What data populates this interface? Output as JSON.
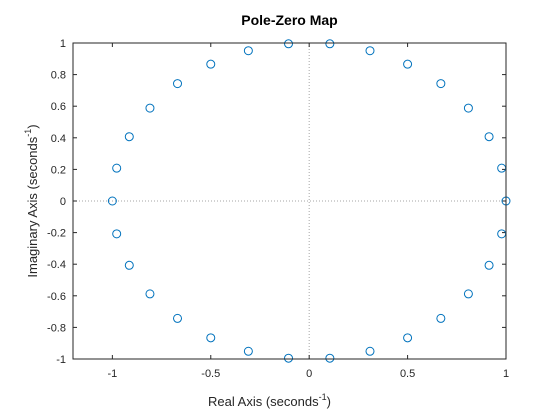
{
  "chart_data": {
    "type": "scatter",
    "title": "Pole-Zero Map",
    "xlabel": {
      "text": "Real Axis (seconds",
      "superscript": "-1",
      "suffix": ")"
    },
    "ylabel": {
      "text": "Imaginary Axis (seconds",
      "superscript": "-1",
      "suffix": ")"
    },
    "xlim": [
      -1.2,
      1
    ],
    "ylim": [
      -1,
      1
    ],
    "x_ticks": [
      -1,
      -0.5,
      0,
      0.5,
      1
    ],
    "x_tick_labels": [
      "-1",
      "-0.5",
      "0",
      "0.5",
      "1"
    ],
    "y_ticks": [
      -1,
      -0.8,
      -0.6,
      -0.4,
      -0.2,
      0,
      0.2,
      0.4,
      0.6,
      0.8,
      1
    ],
    "y_tick_labels": [
      "-1",
      "-0.8",
      "-0.6",
      "-0.4",
      "-0.2",
      "0",
      "0.2",
      "0.4",
      "0.6",
      "0.8",
      "1"
    ],
    "grid": false,
    "zero_lines": "dotted",
    "marker": "circle-open",
    "marker_color": "#0072BD",
    "series": [
      {
        "kind": "zeros",
        "points": [
          [
            1.0,
            0.0
          ],
          [
            0.978,
            0.208
          ],
          [
            0.914,
            0.407
          ],
          [
            0.809,
            0.588
          ],
          [
            0.669,
            0.743
          ],
          [
            0.5,
            0.866
          ],
          [
            0.309,
            0.951
          ],
          [
            0.105,
            0.995
          ],
          [
            -0.105,
            0.995
          ],
          [
            -0.309,
            0.951
          ],
          [
            -0.5,
            0.866
          ],
          [
            -0.669,
            0.743
          ],
          [
            -0.809,
            0.588
          ],
          [
            -0.914,
            0.407
          ],
          [
            -0.978,
            0.208
          ],
          [
            -1.0,
            0.0
          ],
          [
            -0.978,
            -0.208
          ],
          [
            -0.914,
            -0.407
          ],
          [
            -0.809,
            -0.588
          ],
          [
            -0.669,
            -0.743
          ],
          [
            -0.5,
            -0.866
          ],
          [
            -0.309,
            -0.951
          ],
          [
            -0.105,
            -0.995
          ],
          [
            0.105,
            -0.995
          ],
          [
            0.309,
            -0.951
          ],
          [
            0.5,
            -0.866
          ],
          [
            0.669,
            -0.743
          ],
          [
            0.809,
            -0.588
          ],
          [
            0.914,
            -0.407
          ],
          [
            0.978,
            -0.208
          ]
        ]
      }
    ]
  }
}
